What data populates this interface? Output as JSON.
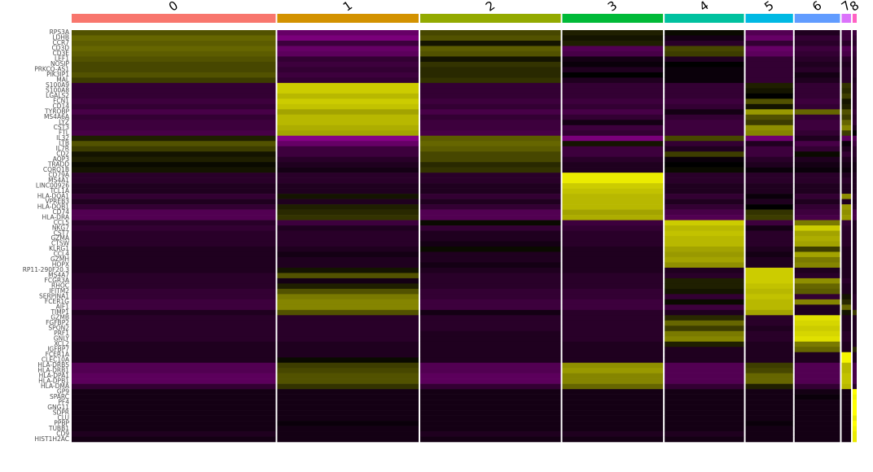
{
  "chart_data": {
    "type": "heatmap",
    "categories": [
      "0",
      "1",
      "2",
      "3",
      "4",
      "5",
      "6",
      "7",
      "8"
    ],
    "colors": [
      "#F8766D",
      "#D39200",
      "#93AA00",
      "#00BA38",
      "#00C19F",
      "#00B9E3",
      "#619CFF",
      "#DB72FB",
      "#FF61C3"
    ],
    "cells": [
      697,
      483,
      480,
      344,
      271,
      162,
      155,
      32,
      14
    ],
    "color_scale": {
      "low": "#FF00FF",
      "mid": "#000000",
      "high": "#FFFF00"
    },
    "zlim": [
      -2.5,
      2.5
    ],
    "genes": [
      "RPS3A",
      "LDHB",
      "CCR7",
      "CD3D",
      "CD3E",
      "LEF1",
      "NOSIP",
      "PRKCQ-AS1",
      "PIK3IP1",
      "MAL",
      "S100A9",
      "S100A8",
      "LGALS2",
      "FCN1",
      "CD14",
      "TYROBP",
      "MS4A6A",
      "LYZ",
      "CST3",
      "FTL",
      "IL32",
      "LTB",
      "IL7R",
      "CD2",
      "AQP3",
      "TRADD",
      "CORO1B",
      "CD79A",
      "MS4A1",
      "LINC00926",
      "TCL1A",
      "HLA-DQA1",
      "VPREB3",
      "HLA-DQB1",
      "CD74",
      "HLA-DRA",
      "CCL5",
      "NKG7",
      "CST7",
      "GZMA",
      "CTSW",
      "KLRG1",
      "CCL4",
      "GZMH",
      "HOPX",
      "RP11-290F20.3",
      "MS4A7",
      "FCGR3A",
      "RHOC",
      "IFITM2",
      "SERPINA1",
      "FCER1G",
      "AIF1",
      "TIMP1",
      "GZMB",
      "FGFBP2",
      "SPON2",
      "PRF1",
      "GNLY",
      "XCL2",
      "IGFBP7",
      "FCER1A",
      "CLEC10A",
      "HLA-DRB5",
      "HLA-DRB1",
      "HLA-DPA1",
      "HLA-DPB1",
      "HLA-DMA",
      "GP9",
      "SPARC",
      "PF4",
      "GNG11",
      "SDPR",
      "CLU",
      "PPBP",
      "TUBB1",
      "CD9",
      "HIST1H2AC"
    ],
    "values": [
      [
        0.8,
        -1.0,
        0.7,
        0.3,
        0.1,
        -0.8,
        -0.3,
        -0.6,
        -0.6
      ],
      [
        1.0,
        -1.2,
        0.8,
        0.2,
        -0.2,
        -1.0,
        -0.5,
        -0.6,
        -0.5
      ],
      [
        0.9,
        -0.6,
        0.2,
        0.3,
        -0.4,
        -0.5,
        -0.4,
        -0.4,
        -0.4
      ],
      [
        1.0,
        -1.0,
        0.9,
        -0.8,
        0.7,
        -1.0,
        -0.6,
        -0.8,
        -0.6
      ],
      [
        0.9,
        -0.9,
        0.8,
        -0.7,
        0.6,
        -0.9,
        -0.5,
        -0.7,
        -0.5
      ],
      [
        0.8,
        -0.5,
        0.2,
        -0.2,
        -0.3,
        -0.5,
        -0.4,
        -0.4,
        -0.4
      ],
      [
        0.7,
        -0.6,
        0.5,
        -0.1,
        0.0,
        -0.5,
        -0.3,
        -0.3,
        -0.4
      ],
      [
        0.7,
        -0.5,
        0.4,
        -0.3,
        -0.1,
        -0.5,
        -0.4,
        -0.4,
        -0.4
      ],
      [
        0.8,
        -0.6,
        0.4,
        0.0,
        -0.1,
        -0.5,
        -0.2,
        -0.4,
        -0.4
      ],
      [
        0.6,
        -0.5,
        0.5,
        -0.3,
        -0.1,
        -0.5,
        -0.3,
        -0.4,
        -0.3
      ],
      [
        -0.5,
        2.0,
        -0.5,
        -0.5,
        -0.5,
        0.3,
        -0.5,
        0.5,
        -0.4
      ],
      [
        -0.5,
        2.0,
        -0.5,
        -0.5,
        -0.5,
        0.2,
        -0.5,
        0.4,
        -0.4
      ],
      [
        -0.5,
        1.8,
        -0.5,
        -0.5,
        -0.5,
        0.0,
        -0.5,
        0.6,
        -0.4
      ],
      [
        -0.6,
        2.0,
        -0.6,
        -0.6,
        -0.6,
        0.8,
        -0.6,
        0.2,
        -0.4
      ],
      [
        -0.5,
        1.9,
        -0.5,
        -0.5,
        -0.5,
        0.2,
        -0.5,
        0.3,
        -0.4
      ],
      [
        -0.7,
        1.6,
        -0.7,
        -0.7,
        -0.2,
        1.5,
        1.0,
        0.8,
        -0.5
      ],
      [
        -0.5,
        1.8,
        -0.5,
        -0.5,
        -0.5,
        0.8,
        -0.5,
        0.6,
        -0.4
      ],
      [
        -0.6,
        1.8,
        -0.6,
        -0.2,
        -0.6,
        0.6,
        -0.6,
        1.0,
        -0.5
      ],
      [
        -0.6,
        1.7,
        -0.6,
        -0.6,
        -0.6,
        1.4,
        -0.6,
        1.3,
        -0.3
      ],
      [
        -0.7,
        1.6,
        -0.7,
        -0.5,
        -0.6,
        1.3,
        -0.5,
        0.6,
        0.0
      ],
      [
        0.3,
        -1.3,
        0.9,
        -1.2,
        0.7,
        -1.1,
        -0.3,
        -0.9,
        -0.8
      ],
      [
        0.8,
        -1.0,
        1.0,
        0.2,
        -0.5,
        -0.3,
        -0.7,
        -0.1,
        -0.6
      ],
      [
        0.6,
        -0.6,
        0.9,
        -0.6,
        -0.3,
        -0.6,
        -0.5,
        -0.3,
        -0.4
      ],
      [
        0.2,
        -0.6,
        0.7,
        -0.6,
        0.6,
        -0.6,
        0.1,
        -0.5,
        -0.4
      ],
      [
        0.3,
        -0.4,
        0.7,
        -0.4,
        -0.1,
        -0.4,
        -0.3,
        -0.3,
        -0.3
      ],
      [
        0.1,
        -0.3,
        0.4,
        -0.3,
        0.0,
        -0.3,
        -0.2,
        -0.2,
        -0.2
      ],
      [
        0.2,
        -0.2,
        0.5,
        -0.3,
        0.1,
        -0.1,
        -0.1,
        -0.1,
        -0.2
      ],
      [
        -0.4,
        -0.4,
        -0.4,
        2.3,
        -0.4,
        -0.4,
        -0.4,
        -0.3,
        -0.3
      ],
      [
        -0.4,
        -0.4,
        -0.4,
        2.3,
        -0.4,
        -0.4,
        -0.4,
        -0.4,
        -0.3
      ],
      [
        -0.3,
        -0.3,
        -0.3,
        2.0,
        -0.3,
        -0.3,
        -0.3,
        -0.3,
        -0.3
      ],
      [
        -0.3,
        -0.3,
        -0.3,
        1.9,
        -0.3,
        -0.3,
        -0.3,
        -0.3,
        -0.3
      ],
      [
        -0.5,
        0.2,
        -0.5,
        1.8,
        -0.5,
        -0.1,
        -0.5,
        1.4,
        -0.4
      ],
      [
        -0.3,
        -0.3,
        -0.3,
        1.8,
        -0.3,
        -0.3,
        -0.3,
        -0.3,
        -0.3
      ],
      [
        -0.5,
        0.3,
        -0.5,
        1.8,
        -0.5,
        0.0,
        -0.5,
        1.5,
        -0.4
      ],
      [
        -0.8,
        0.4,
        -0.8,
        1.6,
        -0.7,
        0.5,
        -0.6,
        1.4,
        -0.7
      ],
      [
        -0.8,
        0.5,
        -0.8,
        1.7,
        -0.8,
        0.6,
        -0.7,
        1.5,
        -0.7
      ],
      [
        -0.4,
        -0.6,
        0.1,
        -0.6,
        2.0,
        -0.6,
        1.2,
        -0.5,
        -0.3
      ],
      [
        -0.5,
        -0.3,
        -0.5,
        -0.5,
        1.8,
        -0.2,
        2.0,
        -0.4,
        -0.3
      ],
      [
        -0.4,
        -0.4,
        -0.3,
        -0.4,
        1.9,
        -0.4,
        1.6,
        -0.4,
        -0.3
      ],
      [
        -0.4,
        -0.4,
        -0.3,
        -0.4,
        1.8,
        -0.4,
        1.7,
        -0.4,
        -0.3
      ],
      [
        -0.4,
        -0.4,
        -0.2,
        -0.4,
        1.8,
        -0.4,
        1.6,
        -0.4,
        -0.3
      ],
      [
        -0.3,
        -0.3,
        0.1,
        -0.3,
        1.6,
        -0.3,
        0.6,
        -0.3,
        -0.3
      ],
      [
        -0.3,
        -0.2,
        -0.3,
        -0.3,
        1.5,
        -0.2,
        1.6,
        -0.3,
        -0.3
      ],
      [
        -0.3,
        -0.3,
        -0.3,
        -0.3,
        1.6,
        -0.3,
        1.2,
        -0.3,
        -0.3
      ],
      [
        -0.3,
        -0.3,
        -0.2,
        -0.3,
        1.4,
        -0.3,
        1.3,
        -0.3,
        -0.3
      ],
      [
        -0.3,
        0.2,
        -0.3,
        -0.3,
        -0.3,
        2.0,
        -0.3,
        -0.3,
        -0.3
      ],
      [
        -0.4,
        0.8,
        -0.4,
        -0.4,
        -0.4,
        2.0,
        -0.4,
        -0.3,
        -0.3
      ],
      [
        -0.4,
        -0.2,
        -0.4,
        -0.4,
        0.3,
        2.0,
        1.4,
        -0.4,
        -0.3
      ],
      [
        -0.4,
        0.3,
        -0.4,
        -0.4,
        0.3,
        1.9,
        1.0,
        -0.3,
        -0.3
      ],
      [
        -0.5,
        0.8,
        -0.5,
        -0.5,
        0.2,
        1.8,
        0.9,
        -0.3,
        -0.3
      ],
      [
        -0.5,
        1.2,
        -0.5,
        -0.5,
        -0.5,
        1.9,
        -0.5,
        0.2,
        -0.4
      ],
      [
        -0.6,
        1.3,
        -0.6,
        -0.6,
        0.1,
        1.8,
        1.3,
        0.4,
        -0.4
      ],
      [
        -0.6,
        1.3,
        -0.6,
        -0.6,
        -0.6,
        1.8,
        -0.3,
        1.0,
        -0.4
      ],
      [
        -0.3,
        0.8,
        -0.2,
        -0.4,
        -0.3,
        1.6,
        -0.3,
        0.2,
        0.6
      ],
      [
        -0.4,
        -0.4,
        -0.4,
        -0.4,
        0.4,
        -0.4,
        2.2,
        -0.3,
        -0.3
      ],
      [
        -0.4,
        -0.4,
        -0.4,
        -0.4,
        1.0,
        -0.4,
        2.1,
        -0.3,
        -0.3
      ],
      [
        -0.4,
        -0.4,
        -0.4,
        -0.4,
        0.6,
        -0.3,
        2.0,
        -0.3,
        -0.3
      ],
      [
        -0.4,
        -0.4,
        -0.3,
        -0.4,
        1.2,
        -0.4,
        2.1,
        -0.4,
        -0.3
      ],
      [
        -0.4,
        -0.4,
        -0.3,
        -0.4,
        1.3,
        -0.4,
        2.2,
        -0.4,
        -0.3
      ],
      [
        -0.3,
        -0.3,
        -0.3,
        -0.3,
        0.3,
        -0.3,
        1.2,
        -0.3,
        -0.3
      ],
      [
        -0.3,
        -0.3,
        -0.3,
        -0.3,
        -0.3,
        -0.3,
        1.0,
        -0.3,
        0.4
      ],
      [
        -0.3,
        -0.3,
        -0.3,
        -0.3,
        -0.3,
        -0.3,
        -0.3,
        2.4,
        -0.3
      ],
      [
        -0.3,
        0.1,
        -0.3,
        -0.3,
        -0.3,
        -0.3,
        -0.3,
        2.4,
        -0.3
      ],
      [
        -0.8,
        0.6,
        -0.8,
        1.4,
        -0.8,
        0.6,
        -0.8,
        1.8,
        -0.7
      ],
      [
        -0.8,
        0.7,
        -0.8,
        1.5,
        -0.8,
        0.7,
        -0.8,
        1.8,
        -0.7
      ],
      [
        -0.9,
        0.8,
        -0.9,
        1.3,
        -0.8,
        1.0,
        -0.8,
        1.9,
        -0.7
      ],
      [
        -0.9,
        0.8,
        -0.9,
        1.3,
        -0.8,
        1.0,
        -0.8,
        1.9,
        -0.7
      ],
      [
        -0.5,
        0.5,
        -0.5,
        1.0,
        -0.5,
        0.3,
        -0.5,
        1.8,
        -0.4
      ],
      [
        -0.2,
        -0.2,
        -0.2,
        -0.2,
        -0.2,
        -0.2,
        -0.2,
        -0.2,
        2.5
      ],
      [
        -0.2,
        -0.2,
        -0.2,
        -0.2,
        -0.2,
        -0.2,
        -0.1,
        -0.2,
        2.4
      ],
      [
        -0.2,
        -0.2,
        -0.2,
        -0.2,
        -0.2,
        -0.2,
        -0.2,
        -0.2,
        2.5
      ],
      [
        -0.2,
        -0.2,
        -0.2,
        -0.2,
        -0.2,
        -0.2,
        -0.2,
        -0.2,
        2.5
      ],
      [
        -0.2,
        -0.2,
        -0.2,
        -0.2,
        -0.2,
        -0.2,
        -0.2,
        -0.2,
        2.5
      ],
      [
        -0.2,
        -0.2,
        -0.2,
        -0.2,
        -0.2,
        -0.2,
        -0.2,
        -0.2,
        2.3
      ],
      [
        -0.2,
        -0.1,
        -0.2,
        -0.2,
        -0.2,
        -0.1,
        -0.2,
        -0.2,
        2.5
      ],
      [
        -0.2,
        -0.2,
        -0.2,
        -0.2,
        -0.2,
        -0.2,
        -0.2,
        -0.2,
        2.4
      ],
      [
        -0.3,
        -0.2,
        -0.3,
        -0.3,
        -0.3,
        -0.2,
        -0.2,
        -0.2,
        2.3
      ],
      [
        -0.2,
        -0.2,
        -0.2,
        -0.2,
        -0.2,
        -0.2,
        -0.2,
        -0.2,
        2.3
      ]
    ]
  }
}
